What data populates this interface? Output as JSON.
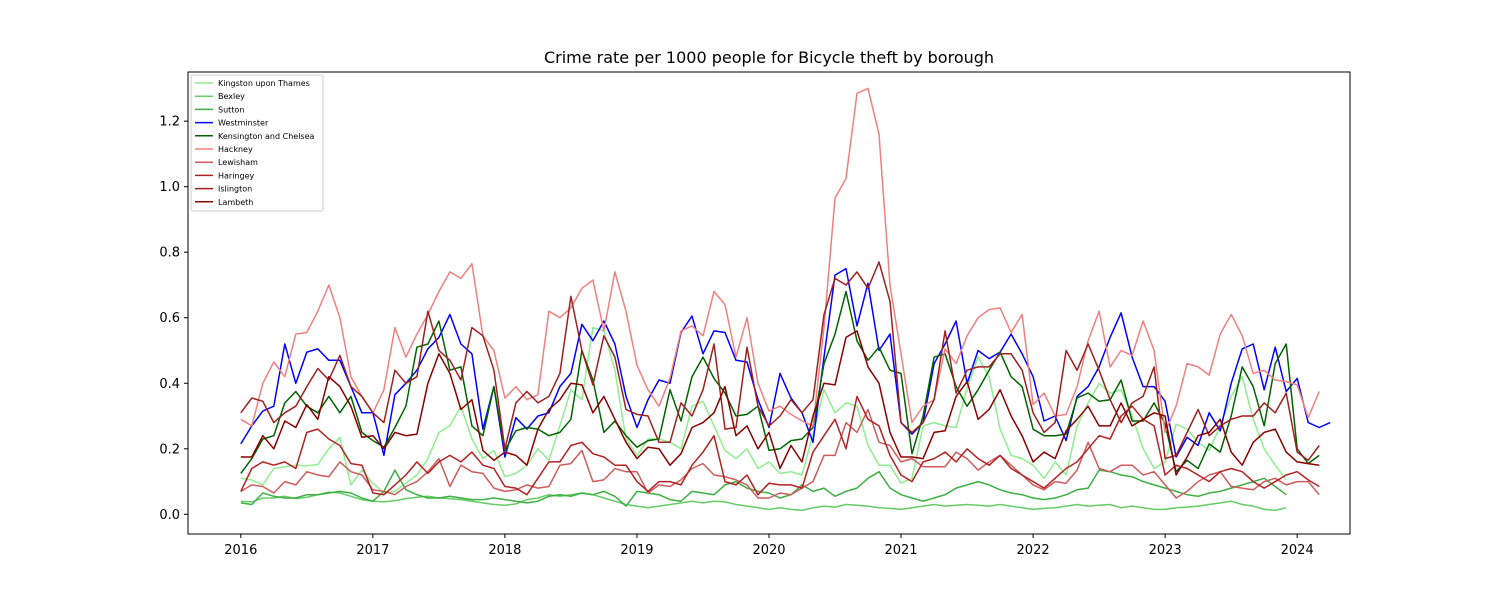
{
  "chart_data": {
    "type": "line",
    "title": "Crime rate per 1000 people for Bicycle theft by borough",
    "xlabel": "",
    "ylabel": "",
    "x_start": "2016-01",
    "x_frequency": "monthly",
    "xlim": [
      2015.6,
      2024.4
    ],
    "ylim": [
      -0.06,
      1.35
    ],
    "x_ticks": [
      2016,
      2017,
      2018,
      2019,
      2020,
      2021,
      2022,
      2023,
      2024
    ],
    "y_ticks": [
      0.0,
      0.2,
      0.4,
      0.6,
      0.8,
      1.0,
      1.2
    ],
    "x_tick_labels": [
      "2016",
      "2017",
      "2018",
      "2019",
      "2020",
      "2021",
      "2022",
      "2023",
      "2024"
    ],
    "y_tick_labels": [
      "0.0",
      "0.2",
      "0.4",
      "0.6",
      "0.8",
      "1.0",
      "1.2"
    ],
    "grid": false,
    "legend_position": "top-left",
    "series": [
      {
        "name": "Kingston upon Thames",
        "color": "#90ee90",
        "values": [
          0.11,
          0.105,
          0.09,
          0.14,
          0.145,
          0.15,
          0.148,
          0.152,
          0.2,
          0.235,
          0.09,
          0.135,
          0.095,
          0.065,
          0.07,
          0.095,
          0.12,
          0.17,
          0.25,
          0.27,
          0.33,
          0.23,
          0.17,
          0.195,
          0.115,
          0.125,
          0.15,
          0.2,
          0.165,
          0.27,
          0.38,
          0.35,
          0.57,
          0.56,
          0.44,
          0.23,
          0.18,
          0.23,
          0.23,
          0.22,
          0.2,
          0.33,
          0.345,
          0.27,
          0.195,
          0.17,
          0.2,
          0.14,
          0.16,
          0.125,
          0.13,
          0.12,
          0.245,
          0.38,
          0.31,
          0.34,
          0.33,
          0.21,
          0.15,
          0.15,
          0.095,
          0.11,
          0.27,
          0.28,
          0.27,
          0.265,
          0.385,
          0.48,
          0.42,
          0.26,
          0.18,
          0.17,
          0.15,
          0.11,
          0.16,
          0.12,
          0.27,
          0.34,
          0.4,
          0.37,
          0.38,
          0.3,
          0.2,
          0.14,
          0.16,
          0.275,
          0.26,
          0.22,
          0.195,
          0.27,
          0.36,
          0.42,
          0.29,
          0.2,
          0.15,
          0.105
        ]
      },
      {
        "name": "Bexley",
        "color": "#66cc66",
        "values": [
          0.04,
          0.038,
          0.05,
          0.05,
          0.055,
          0.048,
          0.052,
          0.06,
          0.068,
          0.065,
          0.055,
          0.045,
          0.04,
          0.038,
          0.042,
          0.048,
          0.052,
          0.055,
          0.05,
          0.048,
          0.045,
          0.04,
          0.035,
          0.03,
          0.028,
          0.032,
          0.045,
          0.05,
          0.06,
          0.055,
          0.06,
          0.065,
          0.06,
          0.05,
          0.04,
          0.03,
          0.025,
          0.02,
          0.025,
          0.03,
          0.035,
          0.04,
          0.035,
          0.04,
          0.038,
          0.03,
          0.025,
          0.02,
          0.015,
          0.02,
          0.015,
          0.012,
          0.02,
          0.025,
          0.022,
          0.03,
          0.028,
          0.025,
          0.02,
          0.018,
          0.015,
          0.02,
          0.025,
          0.03,
          0.025,
          0.028,
          0.03,
          0.028,
          0.025,
          0.03,
          0.025,
          0.02,
          0.015,
          0.018,
          0.02,
          0.025,
          0.03,
          0.025,
          0.028,
          0.03,
          0.02,
          0.025,
          0.02,
          0.015,
          0.015,
          0.02,
          0.022,
          0.025,
          0.03,
          0.035,
          0.04,
          0.03,
          0.025,
          0.015,
          0.012,
          0.02
        ]
      },
      {
        "name": "Sutton",
        "color": "#3cb043",
        "values": [
          0.035,
          0.03,
          0.065,
          0.055,
          0.05,
          0.05,
          0.06,
          0.06,
          0.065,
          0.07,
          0.065,
          0.05,
          0.04,
          0.07,
          0.135,
          0.075,
          0.06,
          0.05,
          0.05,
          0.055,
          0.05,
          0.045,
          0.045,
          0.05,
          0.045,
          0.04,
          0.035,
          0.04,
          0.055,
          0.06,
          0.055,
          0.065,
          0.06,
          0.07,
          0.055,
          0.025,
          0.07,
          0.065,
          0.06,
          0.045,
          0.04,
          0.07,
          0.065,
          0.06,
          0.09,
          0.1,
          0.08,
          0.07,
          0.065,
          0.05,
          0.06,
          0.09,
          0.07,
          0.08,
          0.055,
          0.07,
          0.08,
          0.11,
          0.13,
          0.08,
          0.06,
          0.05,
          0.04,
          0.05,
          0.06,
          0.08,
          0.09,
          0.1,
          0.09,
          0.075,
          0.065,
          0.06,
          0.05,
          0.045,
          0.05,
          0.06,
          0.075,
          0.08,
          0.135,
          0.13,
          0.12,
          0.115,
          0.1,
          0.09,
          0.08,
          0.07,
          0.06,
          0.055,
          0.065,
          0.07,
          0.08,
          0.09,
          0.1,
          0.11,
          0.085,
          0.06
        ]
      },
      {
        "name": "Westminster",
        "color": "#0000ff",
        "values": [
          0.215,
          0.27,
          0.315,
          0.33,
          0.52,
          0.4,
          0.495,
          0.505,
          0.47,
          0.47,
          0.39,
          0.31,
          0.31,
          0.18,
          0.365,
          0.4,
          0.44,
          0.505,
          0.54,
          0.61,
          0.52,
          0.49,
          0.26,
          0.39,
          0.175,
          0.295,
          0.26,
          0.3,
          0.31,
          0.39,
          0.43,
          0.58,
          0.53,
          0.59,
          0.52,
          0.36,
          0.265,
          0.35,
          0.41,
          0.4,
          0.555,
          0.605,
          0.49,
          0.56,
          0.555,
          0.47,
          0.465,
          0.35,
          0.265,
          0.43,
          0.355,
          0.31,
          0.22,
          0.48,
          0.73,
          0.75,
          0.575,
          0.705,
          0.5,
          0.55,
          0.28,
          0.245,
          0.28,
          0.46,
          0.52,
          0.59,
          0.4,
          0.5,
          0.475,
          0.495,
          0.55,
          0.49,
          0.42,
          0.285,
          0.3,
          0.225,
          0.36,
          0.39,
          0.45,
          0.54,
          0.615,
          0.48,
          0.39,
          0.39,
          0.345,
          0.175,
          0.235,
          0.21,
          0.31,
          0.255,
          0.4,
          0.505,
          0.52,
          0.38,
          0.51,
          0.375,
          0.415,
          0.28,
          0.265,
          0.28
        ]
      },
      {
        "name": "Kensington and Chelsea",
        "color": "#006400",
        "values": [
          0.125,
          0.17,
          0.23,
          0.24,
          0.34,
          0.375,
          0.33,
          0.31,
          0.36,
          0.31,
          0.36,
          0.25,
          0.225,
          0.205,
          0.265,
          0.33,
          0.51,
          0.52,
          0.59,
          0.44,
          0.45,
          0.27,
          0.24,
          0.39,
          0.195,
          0.255,
          0.265,
          0.26,
          0.24,
          0.25,
          0.29,
          0.5,
          0.41,
          0.25,
          0.285,
          0.24,
          0.205,
          0.225,
          0.23,
          0.38,
          0.285,
          0.42,
          0.48,
          0.415,
          0.37,
          0.3,
          0.305,
          0.33,
          0.195,
          0.2,
          0.225,
          0.23,
          0.265,
          0.46,
          0.55,
          0.68,
          0.53,
          0.47,
          0.51,
          0.44,
          0.43,
          0.185,
          0.3,
          0.48,
          0.49,
          0.39,
          0.33,
          0.38,
          0.44,
          0.495,
          0.42,
          0.39,
          0.26,
          0.24,
          0.24,
          0.245,
          0.355,
          0.37,
          0.345,
          0.35,
          0.41,
          0.285,
          0.285,
          0.34,
          0.275,
          0.13,
          0.165,
          0.14,
          0.215,
          0.19,
          0.3,
          0.45,
          0.39,
          0.27,
          0.46,
          0.52,
          0.2,
          0.155,
          0.18
        ]
      },
      {
        "name": "Hackney",
        "color": "#f08080",
        "values": [
          0.29,
          0.27,
          0.4,
          0.465,
          0.42,
          0.55,
          0.555,
          0.62,
          0.7,
          0.6,
          0.42,
          0.36,
          0.31,
          0.38,
          0.57,
          0.48,
          0.55,
          0.61,
          0.68,
          0.74,
          0.72,
          0.765,
          0.545,
          0.5,
          0.355,
          0.39,
          0.35,
          0.365,
          0.62,
          0.6,
          0.63,
          0.69,
          0.715,
          0.56,
          0.74,
          0.62,
          0.455,
          0.38,
          0.33,
          0.415,
          0.56,
          0.575,
          0.545,
          0.68,
          0.64,
          0.48,
          0.6,
          0.4,
          0.315,
          0.33,
          0.305,
          0.285,
          0.27,
          0.57,
          0.965,
          1.025,
          1.285,
          1.3,
          1.16,
          0.7,
          0.49,
          0.28,
          0.33,
          0.35,
          0.505,
          0.46,
          0.545,
          0.6,
          0.625,
          0.63,
          0.555,
          0.61,
          0.335,
          0.37,
          0.3,
          0.305,
          0.39,
          0.53,
          0.62,
          0.45,
          0.5,
          0.485,
          0.59,
          0.5,
          0.25,
          0.33,
          0.46,
          0.45,
          0.425,
          0.55,
          0.61,
          0.545,
          0.43,
          0.44,
          0.41,
          0.405,
          0.395,
          0.295,
          0.375
        ]
      },
      {
        "name": "Lewisham",
        "color": "#cd5c5c",
        "values": [
          0.07,
          0.09,
          0.085,
          0.065,
          0.1,
          0.09,
          0.13,
          0.12,
          0.115,
          0.16,
          0.13,
          0.12,
          0.075,
          0.07,
          0.06,
          0.085,
          0.1,
          0.13,
          0.17,
          0.085,
          0.15,
          0.13,
          0.125,
          0.08,
          0.07,
          0.075,
          0.09,
          0.08,
          0.085,
          0.15,
          0.155,
          0.195,
          0.1,
          0.105,
          0.14,
          0.13,
          0.13,
          0.065,
          0.09,
          0.085,
          0.105,
          0.14,
          0.155,
          0.12,
          0.115,
          0.105,
          0.09,
          0.05,
          0.05,
          0.065,
          0.06,
          0.08,
          0.1,
          0.18,
          0.18,
          0.28,
          0.25,
          0.32,
          0.22,
          0.21,
          0.16,
          0.17,
          0.145,
          0.145,
          0.145,
          0.19,
          0.17,
          0.135,
          0.16,
          0.18,
          0.15,
          0.12,
          0.09,
          0.075,
          0.1,
          0.095,
          0.135,
          0.22,
          0.14,
          0.13,
          0.15,
          0.15,
          0.12,
          0.13,
          0.09,
          0.05,
          0.07,
          0.1,
          0.12,
          0.13,
          0.085,
          0.08,
          0.075,
          0.1,
          0.11,
          0.09,
          0.1,
          0.1,
          0.06
        ]
      },
      {
        "name": "Haringey",
        "color": "#b22222",
        "values": [
          0.07,
          0.14,
          0.16,
          0.15,
          0.16,
          0.14,
          0.25,
          0.26,
          0.23,
          0.21,
          0.155,
          0.15,
          0.065,
          0.06,
          0.09,
          0.12,
          0.16,
          0.125,
          0.16,
          0.18,
          0.16,
          0.19,
          0.15,
          0.14,
          0.085,
          0.08,
          0.06,
          0.11,
          0.16,
          0.16,
          0.21,
          0.22,
          0.185,
          0.175,
          0.15,
          0.15,
          0.1,
          0.07,
          0.1,
          0.1,
          0.09,
          0.15,
          0.19,
          0.24,
          0.1,
          0.09,
          0.12,
          0.06,
          0.095,
          0.09,
          0.09,
          0.08,
          0.19,
          0.24,
          0.29,
          0.2,
          0.36,
          0.29,
          0.27,
          0.18,
          0.12,
          0.1,
          0.16,
          0.17,
          0.19,
          0.16,
          0.2,
          0.17,
          0.15,
          0.18,
          0.14,
          0.12,
          0.1,
          0.08,
          0.11,
          0.14,
          0.16,
          0.2,
          0.24,
          0.23,
          0.3,
          0.33,
          0.29,
          0.27,
          0.12,
          0.15,
          0.14,
          0.12,
          0.1,
          0.13,
          0.14,
          0.13,
          0.1,
          0.08,
          0.1,
          0.12,
          0.13,
          0.105,
          0.085
        ]
      },
      {
        "name": "Islington",
        "color": "#a01f1f",
        "values": [
          0.31,
          0.355,
          0.345,
          0.28,
          0.31,
          0.33,
          0.39,
          0.445,
          0.41,
          0.485,
          0.39,
          0.36,
          0.31,
          0.28,
          0.44,
          0.4,
          0.42,
          0.62,
          0.5,
          0.47,
          0.41,
          0.57,
          0.545,
          0.44,
          0.2,
          0.34,
          0.375,
          0.34,
          0.36,
          0.43,
          0.665,
          0.5,
          0.395,
          0.545,
          0.48,
          0.32,
          0.305,
          0.3,
          0.22,
          0.22,
          0.34,
          0.3,
          0.38,
          0.52,
          0.26,
          0.265,
          0.51,
          0.33,
          0.27,
          0.3,
          0.35,
          0.31,
          0.35,
          0.61,
          0.72,
          0.7,
          0.74,
          0.69,
          0.77,
          0.65,
          0.28,
          0.25,
          0.28,
          0.35,
          0.56,
          0.37,
          0.44,
          0.45,
          0.45,
          0.49,
          0.49,
          0.44,
          0.31,
          0.25,
          0.28,
          0.5,
          0.44,
          0.52,
          0.44,
          0.35,
          0.28,
          0.34,
          0.36,
          0.45,
          0.17,
          0.18,
          0.25,
          0.32,
          0.24,
          0.27,
          0.29,
          0.3,
          0.3,
          0.34,
          0.31,
          0.37,
          0.19,
          0.165,
          0.21
        ]
      },
      {
        "name": "Lambeth",
        "color": "#8b0000",
        "values": [
          0.175,
          0.175,
          0.24,
          0.2,
          0.285,
          0.265,
          0.335,
          0.29,
          0.42,
          0.39,
          0.33,
          0.235,
          0.24,
          0.2,
          0.25,
          0.24,
          0.245,
          0.4,
          0.49,
          0.43,
          0.32,
          0.35,
          0.195,
          0.165,
          0.19,
          0.18,
          0.15,
          0.26,
          0.32,
          0.35,
          0.4,
          0.395,
          0.31,
          0.36,
          0.29,
          0.22,
          0.17,
          0.205,
          0.2,
          0.15,
          0.185,
          0.265,
          0.28,
          0.31,
          0.39,
          0.24,
          0.27,
          0.2,
          0.25,
          0.14,
          0.21,
          0.16,
          0.3,
          0.4,
          0.395,
          0.54,
          0.56,
          0.45,
          0.4,
          0.25,
          0.175,
          0.175,
          0.17,
          0.25,
          0.255,
          0.36,
          0.405,
          0.29,
          0.32,
          0.38,
          0.3,
          0.24,
          0.16,
          0.19,
          0.17,
          0.255,
          0.29,
          0.33,
          0.27,
          0.27,
          0.34,
          0.27,
          0.29,
          0.31,
          0.3,
          0.12,
          0.175,
          0.24,
          0.25,
          0.29,
          0.19,
          0.15,
          0.22,
          0.25,
          0.26,
          0.19,
          0.16,
          0.155,
          0.15
        ]
      }
    ]
  }
}
